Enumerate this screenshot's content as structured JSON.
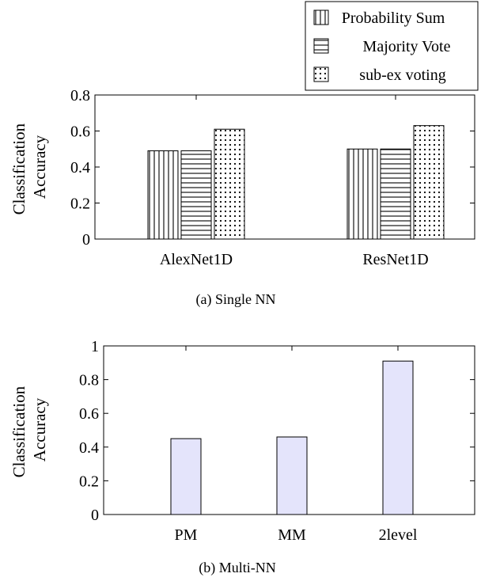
{
  "chart_data": [
    {
      "type": "bar",
      "caption": "(a) Single NN",
      "ylabel": [
        "Classification",
        "Accuracy"
      ],
      "ylim": [
        0,
        0.8
      ],
      "yticks": [
        "0",
        "0.2",
        "0.4",
        "0.6",
        "0.8"
      ],
      "categories": [
        "AlexNet1D",
        "ResNet1D"
      ],
      "legend_position": "top-right, above plot",
      "series": [
        {
          "name": "Probability Sum",
          "pattern": "vertical-lines",
          "values": [
            0.49,
            0.5
          ]
        },
        {
          "name": "Majority Vote",
          "pattern": "horizontal-lines",
          "values": [
            0.49,
            0.5
          ]
        },
        {
          "name": "sub-ex voting",
          "pattern": "dots",
          "values": [
            0.61,
            0.63
          ]
        }
      ]
    },
    {
      "type": "bar",
      "caption": "(b) Multi-NN",
      "ylabel": [
        "Classification",
        "Accuracy"
      ],
      "ylim": [
        0,
        1
      ],
      "yticks": [
        "0",
        "0.2",
        "0.4",
        "0.6",
        "0.8",
        "1"
      ],
      "categories": [
        "PM",
        "MM",
        "2level"
      ],
      "bar_color": "#e4e4fb",
      "values": [
        0.45,
        0.46,
        0.91
      ]
    }
  ]
}
